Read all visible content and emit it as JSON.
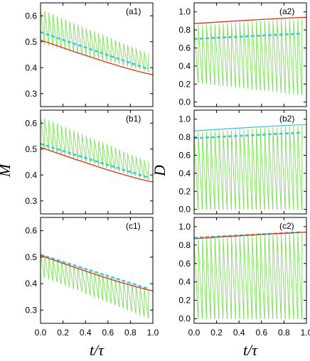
{
  "figure": {
    "ylabel_left": "M",
    "ylabel_right": "D",
    "xlabel": "t/τ"
  },
  "colors": {
    "green": "#7ee05a",
    "cyan": "#43c6e8",
    "red": "#d8351c",
    "frame": "#000000"
  },
  "chart_data": [
    {
      "id": "a1",
      "type": "line",
      "label": "(a1)",
      "xlim": [
        0,
        1
      ],
      "ylim": [
        0.25,
        0.65
      ],
      "xticks": [
        "0.0",
        "0.2",
        "0.4",
        "0.6",
        "0.8",
        "1.0"
      ],
      "yticks": [
        "0.3",
        "0.4",
        "0.5",
        "0.6"
      ],
      "series": [
        {
          "role": "oscillation",
          "color": "green",
          "x0": 0,
          "x1": 0.96,
          "n": 27,
          "low": [
            0.495,
            0.385
          ],
          "high": [
            0.625,
            0.455
          ]
        },
        {
          "role": "average",
          "color": "cyan",
          "dashed": true,
          "x": [
            0.0,
            0.96
          ],
          "y": [
            0.537,
            0.395
          ]
        },
        {
          "role": "reference",
          "color": "red",
          "x": [
            0.0,
            1.0
          ],
          "y": [
            0.507,
            0.373
          ]
        }
      ]
    },
    {
      "id": "a2",
      "type": "line",
      "label": "(a2)",
      "xlim": [
        0,
        1
      ],
      "ylim": [
        -0.05,
        1.1
      ],
      "xticks": [
        "0.0",
        "0.2",
        "0.4",
        "0.6",
        "0.8",
        "1.0"
      ],
      "yticks": [
        "0.0",
        "0.2",
        "0.4",
        "0.6",
        "0.8",
        "1.0"
      ],
      "series": [
        {
          "role": "oscillation",
          "color": "green",
          "x0": 0,
          "x1": 0.96,
          "n": 27,
          "low": [
            0.22,
            0.08
          ],
          "high": [
            0.85,
            0.93
          ]
        },
        {
          "role": "average",
          "color": "cyan",
          "dashed": true,
          "x": [
            0.0,
            0.96
          ],
          "y": [
            0.7,
            0.76
          ]
        },
        {
          "role": "reference",
          "color": "red",
          "x": [
            0.0,
            1.0
          ],
          "y": [
            0.87,
            0.94
          ]
        }
      ]
    },
    {
      "id": "b1",
      "type": "line",
      "label": "(b1)",
      "xlim": [
        0,
        1
      ],
      "ylim": [
        0.25,
        0.65
      ],
      "xticks": [
        "0.0",
        "0.2",
        "0.4",
        "0.6",
        "0.8",
        "1.0"
      ],
      "yticks": [
        "0.3",
        "0.4",
        "0.5",
        "0.6"
      ],
      "series": [
        {
          "role": "oscillation",
          "color": "green",
          "x0": 0,
          "x1": 0.96,
          "n": 27,
          "low": [
            0.503,
            0.382
          ],
          "high": [
            0.625,
            0.452
          ]
        },
        {
          "role": "average",
          "color": "cyan",
          "dashed": true,
          "x": [
            0.0,
            0.96
          ],
          "y": [
            0.52,
            0.39
          ]
        },
        {
          "role": "reference",
          "color": "red",
          "x": [
            0.0,
            1.0
          ],
          "y": [
            0.507,
            0.373
          ]
        }
      ]
    },
    {
      "id": "b2",
      "type": "line",
      "label": "(b2)",
      "xlim": [
        0,
        1
      ],
      "ylim": [
        -0.05,
        1.1
      ],
      "xticks": [
        "0.0",
        "0.2",
        "0.4",
        "0.6",
        "0.8",
        "1.0"
      ],
      "yticks": [
        "0.0",
        "0.2",
        "0.4",
        "0.6",
        "0.8",
        "1.0"
      ],
      "series": [
        {
          "role": "oscillation",
          "color": "green",
          "x0": 0,
          "x1": 0.96,
          "n": 27,
          "low": [
            0.0,
            0.0
          ],
          "high": [
            0.85,
            0.93
          ]
        },
        {
          "role": "average",
          "color": "cyan",
          "dashed": true,
          "x": [
            0.0,
            0.96
          ],
          "y": [
            0.79,
            0.85
          ]
        },
        {
          "role": "reference",
          "color": "cyan",
          "x": [
            0.0,
            1.0
          ],
          "y": [
            0.87,
            0.94
          ]
        }
      ]
    },
    {
      "id": "c1",
      "type": "line",
      "label": "(c1)",
      "xlim": [
        0,
        1
      ],
      "ylim": [
        0.25,
        0.65
      ],
      "xticks": [
        "0.0",
        "0.2",
        "0.4",
        "0.6",
        "0.8",
        "1.0"
      ],
      "yticks": [
        "0.3",
        "0.4",
        "0.5",
        "0.6"
      ],
      "series": [
        {
          "role": "oscillation",
          "color": "green",
          "x0": 0,
          "x1": 0.96,
          "n": 27,
          "low": [
            0.43,
            0.27
          ],
          "high": [
            0.512,
            0.378
          ]
        },
        {
          "role": "average",
          "color": "cyan",
          "dashed": true,
          "x": [
            0.0,
            0.96
          ],
          "y": [
            0.509,
            0.381
          ]
        },
        {
          "role": "reference",
          "color": "red",
          "x": [
            0.0,
            1.0
          ],
          "y": [
            0.507,
            0.373
          ]
        }
      ]
    },
    {
      "id": "c2",
      "type": "line",
      "label": "(c2)",
      "xlim": [
        0,
        1
      ],
      "ylim": [
        -0.05,
        1.1
      ],
      "xticks": [
        "0.0",
        "0.2",
        "0.4",
        "0.6",
        "0.8",
        "1.0"
      ],
      "yticks": [
        "0.0",
        "0.2",
        "0.4",
        "0.6",
        "0.8",
        "1.0"
      ],
      "series": [
        {
          "role": "oscillation",
          "color": "green",
          "x0": 0,
          "x1": 0.96,
          "n": 27,
          "low": [
            0.0,
            0.0
          ],
          "high": [
            0.87,
            0.94
          ]
        },
        {
          "role": "average",
          "color": "cyan",
          "dashed": true,
          "x": [
            0.0,
            0.96
          ],
          "y": [
            0.88,
            0.94
          ]
        },
        {
          "role": "reference",
          "color": "red",
          "x": [
            0.0,
            1.0
          ],
          "y": [
            0.87,
            0.94
          ]
        }
      ]
    }
  ]
}
